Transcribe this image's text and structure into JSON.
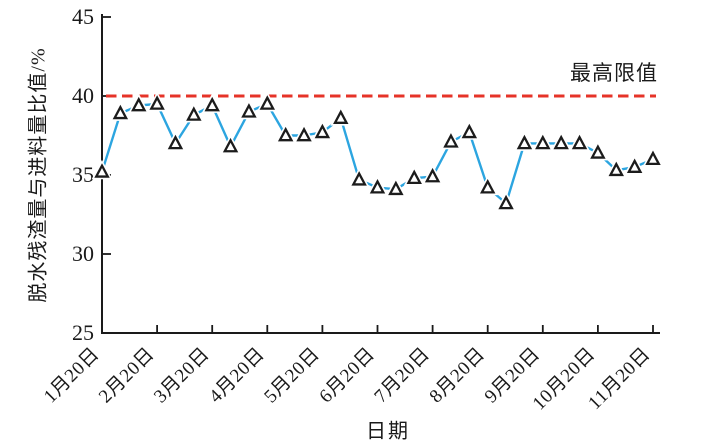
{
  "chart_data": {
    "type": "line",
    "title": "",
    "xlabel": "日期",
    "ylabel": "脱水残渣量与进料量比值/%",
    "ylim": [
      25,
      45
    ],
    "y_ticks": [
      25,
      30,
      35,
      40,
      45
    ],
    "x_tick_labels": [
      "1月20日",
      "2月20日",
      "3月20日",
      "4月20日",
      "5月20日",
      "6月20日",
      "7月20日",
      "8月20日",
      "9月20日",
      "10月20日",
      "11月20日"
    ],
    "points_per_tick": 3,
    "grid": false,
    "legend": false,
    "limit_line": {
      "value": 40,
      "label": "最高限值",
      "style": "dashed",
      "color": "#e63328"
    },
    "series": [
      {
        "marker": "triangle-up",
        "line_color": "#2ca5e0",
        "marker_fill": "#ffffff",
        "marker_stroke": "#1c1c1c",
        "values": [
          35.2,
          38.9,
          39.4,
          39.5,
          37.0,
          38.8,
          39.4,
          36.8,
          39.0,
          39.5,
          37.5,
          37.5,
          37.7,
          38.6,
          34.7,
          34.2,
          34.1,
          34.8,
          34.9,
          37.1,
          37.7,
          34.2,
          33.2,
          37.0,
          37.0,
          37.0,
          37.0,
          36.4,
          35.3,
          35.5,
          36.0
        ]
      }
    ]
  },
  "colors": {
    "axis": "#1a1a1a",
    "text": "#1a1a1a",
    "background": "#ffffff"
  }
}
